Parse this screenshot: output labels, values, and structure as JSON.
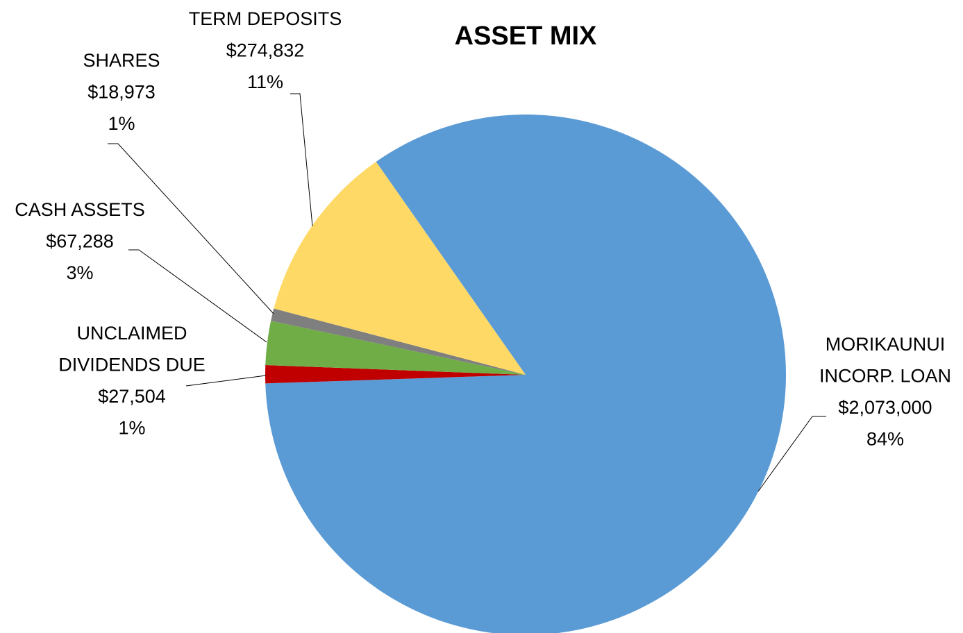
{
  "chart_data": {
    "type": "pie",
    "title": "ASSET MIX",
    "categories": [
      [
        "MORIKAUNUI",
        "INCORP. LOAN"
      ],
      [
        "UNCLAIMED",
        "DIVIDENDS DUE"
      ],
      [
        "CASH ASSETS"
      ],
      [
        "SHARES"
      ],
      [
        "TERM DEPOSITS"
      ]
    ],
    "values": [
      2073000,
      27504,
      67288,
      18973,
      274832
    ],
    "value_labels": [
      "$2,073,000",
      "$27,504",
      "$67,288",
      "$18,973",
      "$274,832"
    ],
    "percent_labels": [
      "84%",
      "1%",
      "3%",
      "1%",
      "11%"
    ],
    "colors": [
      "#5b9bd5",
      "#c00000",
      "#70ad47",
      "#7f7f7f",
      "#ffd966"
    ]
  }
}
